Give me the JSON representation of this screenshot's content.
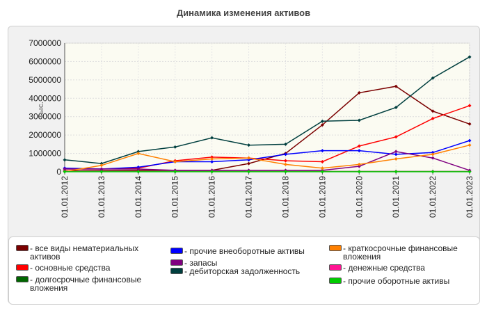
{
  "chart_data": {
    "type": "line",
    "title": "Динамика изменения активов",
    "ylabel": "тыс.",
    "xlabel": "",
    "ylim": [
      0,
      7000000
    ],
    "yticks": [
      0,
      1000000,
      2000000,
      3000000,
      4000000,
      5000000,
      6000000,
      7000000
    ],
    "grid": true,
    "legend_position": "bottom",
    "categories": [
      "01.01.2012",
      "01.01.2013",
      "01.01.2014",
      "01.01.2015",
      "01.01.2016",
      "01.01.2017",
      "01.01.2018",
      "01.01.2019",
      "01.01.2020",
      "01.01.2021",
      "01.01.2022",
      "01.01.2023"
    ],
    "series": [
      {
        "name": "все виды нематериальных активов",
        "color": "#7b0000",
        "values": [
          50000,
          60000,
          80000,
          80000,
          80000,
          450000,
          1000000,
          2550000,
          4300000,
          4650000,
          3300000,
          2600000
        ]
      },
      {
        "name": "основные средства",
        "color": "#ff0000",
        "values": [
          150000,
          150000,
          200000,
          600000,
          800000,
          750000,
          600000,
          550000,
          1400000,
          1900000,
          2900000,
          3600000
        ]
      },
      {
        "name": "долгосрочные финансовые вложения",
        "color": "#006600",
        "values": [
          20000,
          20000,
          20000,
          20000,
          20000,
          20000,
          20000,
          20000,
          20000,
          20000,
          20000,
          20000
        ]
      },
      {
        "name": "прочие внеоборотные активы",
        "color": "#0000ff",
        "values": [
          200000,
          150000,
          250000,
          550000,
          550000,
          650000,
          950000,
          1150000,
          1150000,
          950000,
          1050000,
          1700000
        ]
      },
      {
        "name": "запасы",
        "color": "#800080",
        "values": [
          150000,
          150000,
          150000,
          80000,
          80000,
          80000,
          80000,
          80000,
          300000,
          1100000,
          750000,
          80000
        ]
      },
      {
        "name": "дебиторская задолженность",
        "color": "#003f3f",
        "values": [
          650000,
          450000,
          1100000,
          1350000,
          1850000,
          1450000,
          1500000,
          2750000,
          2800000,
          3500000,
          5100000,
          6250000
        ]
      },
      {
        "name": "краткосрочные финансовые вложения",
        "color": "#ff8000",
        "values": [
          10000,
          350000,
          1000000,
          550000,
          700000,
          750000,
          400000,
          200000,
          400000,
          700000,
          950000,
          1450000
        ]
      },
      {
        "name": "денежные средства",
        "color": "#ff1493",
        "values": [
          15000,
          15000,
          15000,
          15000,
          15000,
          15000,
          15000,
          15000,
          15000,
          15000,
          15000,
          15000
        ]
      },
      {
        "name": "прочие оборотные активы",
        "color": "#00cc00",
        "values": [
          5000,
          5000,
          5000,
          5000,
          5000,
          5000,
          5000,
          5000,
          5000,
          5000,
          5000,
          5000
        ]
      }
    ]
  }
}
